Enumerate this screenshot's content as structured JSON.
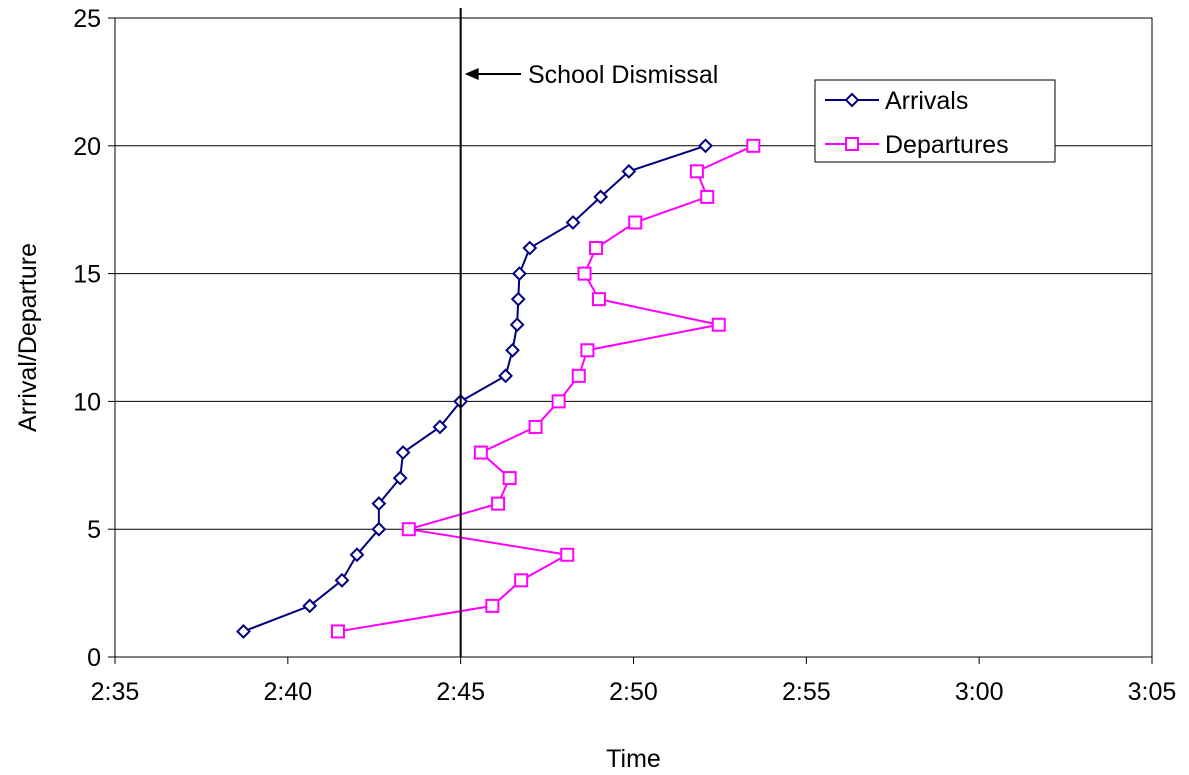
{
  "chart_data": {
    "type": "scatter",
    "title": "",
    "xlabel": "Time",
    "ylabel": "Arrival/Departure",
    "x_ticks": [
      "2:35",
      "2:40",
      "2:45",
      "2:50",
      "2:55",
      "3:00",
      "3:05"
    ],
    "y_ticks": [
      "0",
      "5",
      "10",
      "15",
      "20",
      "25"
    ],
    "xlim": [
      "2:35",
      "3:05"
    ],
    "ylim": [
      0,
      25
    ],
    "grid": "horizontal",
    "legend_position": "top-right",
    "annotation": {
      "text": "School Dismissal",
      "x": "2:45"
    },
    "series": [
      {
        "name": "Arrivals",
        "color": "#000080",
        "marker": "diamond",
        "x": [
          "2:38:43",
          "2:40:38",
          "2:41:34",
          "2:42:00",
          "2:42:38",
          "2:42:38",
          "2:43:15",
          "2:43:20",
          "2:44:24",
          "2:45:00",
          "2:46:18",
          "2:46:30",
          "2:46:38",
          "2:46:40",
          "2:46:42",
          "2:47:00",
          "2:48:15",
          "2:49:03",
          "2:49:52",
          "2:52:05"
        ],
        "values": [
          1,
          2,
          3,
          4,
          5,
          6,
          7,
          8,
          9,
          10,
          11,
          12,
          13,
          14,
          15,
          16,
          17,
          18,
          19,
          20
        ]
      },
      {
        "name": "Departures",
        "color": "#FF00FF",
        "marker": "square",
        "x": [
          "2:41:27",
          "2:45:55",
          "2:46:45",
          "2:48:05",
          "2:43:30",
          "2:46:05",
          "2:46:25",
          "2:45:35",
          "2:47:10",
          "2:47:50",
          "2:48:25",
          "2:48:40",
          "2:52:28",
          "2:49:00",
          "2:48:35",
          "2:48:55",
          "2:50:03",
          "2:52:08",
          "2:51:50",
          "2:53:28"
        ],
        "values": [
          1,
          2,
          3,
          4,
          5,
          6,
          7,
          8,
          9,
          10,
          11,
          12,
          13,
          14,
          15,
          16,
          17,
          18,
          19,
          20
        ]
      }
    ]
  }
}
